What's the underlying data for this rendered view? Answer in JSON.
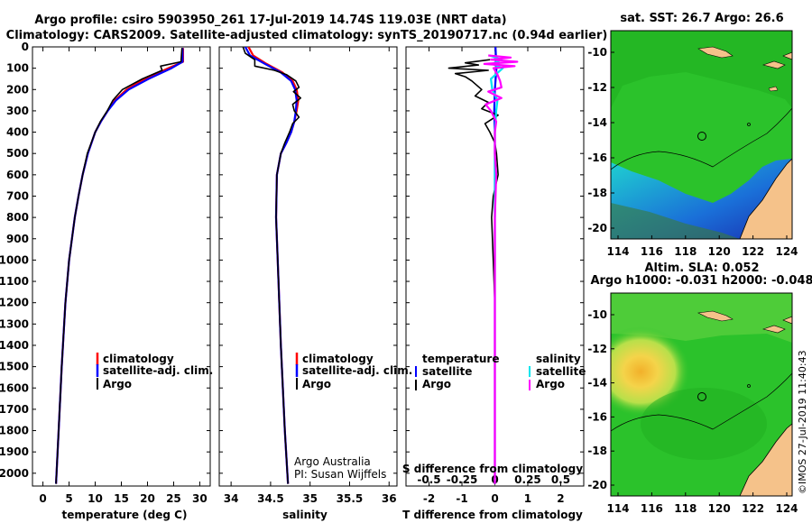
{
  "header": {
    "title_line1": "Argo profile: csiro 5903950_261 17-Jul-2019 14.74S 119.03E (NRT data)",
    "title_line2": "Climatology: CARS2009. Satellite-adjusted climatology: synTS_20190717.nc (0.94d earlier)"
  },
  "colors": {
    "argo": "#000000",
    "climatology": "#ff0000",
    "satellite": "#0000ff",
    "sat_salinity": "#00e5ee",
    "argo_salinity": "#ff00ff",
    "land": "#f5c28a",
    "sea_green": "#2bc22b"
  },
  "chart_data": [
    {
      "type": "line",
      "name": "temperature-profile",
      "xlabel": "temperature (deg C)",
      "ylabel": "",
      "xlim": [
        -2,
        32
      ],
      "ylim": [
        2060,
        0
      ],
      "xticks": [
        0,
        5,
        10,
        15,
        20,
        25,
        30
      ],
      "yticks": [
        0,
        100,
        200,
        300,
        400,
        500,
        600,
        700,
        800,
        900,
        1000,
        1100,
        1200,
        1300,
        1400,
        1500,
        1600,
        1700,
        1800,
        1900,
        2000
      ],
      "legend": [
        "climatology",
        "satellite-adj. clim.",
        "Argo"
      ],
      "series": [
        {
          "name": "climatology",
          "color": "#ff0000",
          "depth": [
            5,
            70,
            100,
            150,
            200,
            250,
            300,
            350,
            400,
            500,
            600,
            700,
            800,
            1000,
            1200,
            1500,
            1800,
            2050
          ],
          "values": [
            26.8,
            26.8,
            24.0,
            19.5,
            16.0,
            13.8,
            12.4,
            11.1,
            10.0,
            8.6,
            7.6,
            6.8,
            6.1,
            5.0,
            4.3,
            3.6,
            3.0,
            2.5
          ]
        },
        {
          "name": "satellite-adj. clim.",
          "color": "#0000ff",
          "depth": [
            5,
            70,
            100,
            150,
            200,
            250,
            300,
            350,
            400,
            500,
            600,
            700,
            800,
            1000,
            1200,
            1500,
            1800,
            2050
          ],
          "values": [
            26.7,
            26.7,
            24.6,
            20.2,
            16.4,
            14.0,
            12.4,
            11.1,
            10.0,
            8.6,
            7.6,
            6.8,
            6.1,
            5.0,
            4.3,
            3.6,
            3.0,
            2.5
          ]
        },
        {
          "name": "Argo",
          "color": "#000000",
          "depth": [
            5,
            70,
            90,
            110,
            150,
            200,
            250,
            300,
            350,
            400,
            500,
            600,
            700,
            800,
            1000,
            1200,
            1500,
            1800,
            2050
          ],
          "values": [
            26.6,
            26.4,
            22.5,
            22.8,
            19.0,
            15.2,
            13.4,
            12.3,
            11.0,
            10.0,
            8.5,
            7.6,
            6.8,
            6.1,
            5.0,
            4.3,
            3.6,
            3.0,
            2.5
          ]
        }
      ]
    },
    {
      "type": "line",
      "name": "salinity-profile",
      "xlabel": "salinity",
      "xlim": [
        33.85,
        36.1
      ],
      "ylim": [
        2060,
        0
      ],
      "xticks": [
        34,
        34.5,
        35,
        35.5,
        36
      ],
      "tick_labels": [
        "34",
        "34.5",
        "35",
        "35.5",
        "36"
      ],
      "legend": [
        "climatology",
        "satellite-adj. clim.",
        "Argo"
      ],
      "credit_line1": "Argo Australia",
      "credit_line2": "PI: Susan Wijffels",
      "series": [
        {
          "name": "climatology",
          "color": "#ff0000",
          "depth": [
            0,
            40,
            80,
            120,
            160,
            200,
            250,
            300,
            350,
            400,
            450,
            500,
            600,
            800,
            1000,
            1400,
            1800,
            2050
          ],
          "values": [
            34.22,
            34.28,
            34.45,
            34.65,
            34.78,
            34.83,
            34.85,
            34.83,
            34.8,
            34.76,
            34.7,
            34.63,
            34.58,
            34.57,
            34.59,
            34.63,
            34.68,
            34.72
          ]
        },
        {
          "name": "satellite-adj. clim.",
          "color": "#0000ff",
          "depth": [
            0,
            40,
            80,
            120,
            160,
            200,
            250,
            300,
            350,
            400,
            450,
            500,
            600,
            800,
            1000,
            1400,
            1800,
            2050
          ],
          "values": [
            34.18,
            34.24,
            34.43,
            34.63,
            34.76,
            34.81,
            34.83,
            34.82,
            34.8,
            34.76,
            34.7,
            34.63,
            34.58,
            34.57,
            34.59,
            34.63,
            34.68,
            34.72
          ]
        },
        {
          "name": "Argo",
          "color": "#000000",
          "depth": [
            0,
            30,
            60,
            90,
            110,
            130,
            160,
            190,
            210,
            240,
            270,
            300,
            330,
            360,
            400,
            450,
            500,
            600,
            800,
            1000,
            1400,
            1800,
            2050
          ],
          "values": [
            34.15,
            34.18,
            34.3,
            34.3,
            34.55,
            34.7,
            34.82,
            34.86,
            34.79,
            34.88,
            34.78,
            34.8,
            34.86,
            34.78,
            34.74,
            34.68,
            34.63,
            34.58,
            34.57,
            34.59,
            34.63,
            34.68,
            34.72
          ]
        }
      ]
    },
    {
      "type": "line",
      "name": "difference-from-climatology",
      "xlabel": "T difference from climatology",
      "xlabel_top": "S difference from climatology",
      "xlim": [
        -2.7,
        2.7
      ],
      "ylim": [
        2060,
        0
      ],
      "xticks": [
        -2,
        -1,
        0,
        1,
        2
      ],
      "s_ticks": [
        -0.5,
        -0.25,
        0,
        0.25,
        0.5
      ],
      "s_tick_labels": [
        "-0.5",
        "-0.25",
        "0",
        "0.25",
        "0.5"
      ],
      "legend_left_title": "temperature",
      "legend_right_title": "salinity",
      "legend_left": [
        "satellite",
        "Argo"
      ],
      "legend_right": [
        "satellite",
        "Argo"
      ],
      "series": [
        {
          "name": "T satellite",
          "color": "#0000ff",
          "depth": [
            0,
            100,
            200,
            300,
            400,
            600,
            800,
            1000,
            1500,
            2050
          ],
          "values": [
            0.02,
            0.05,
            0.0,
            -0.02,
            0.0,
            0.0,
            0.0,
            0.0,
            0.0,
            0.0
          ]
        },
        {
          "name": "T Argo",
          "color": "#000000",
          "depth": [
            60,
            75,
            85,
            100,
            110,
            125,
            140,
            160,
            200,
            230,
            260,
            290,
            320,
            360,
            400,
            450,
            500,
            600,
            700,
            800,
            1000,
            1200,
            1500,
            1800,
            2050
          ],
          "values": [
            -0.15,
            -0.9,
            -0.5,
            -1.4,
            -0.2,
            -1.2,
            -0.9,
            -0.7,
            -0.4,
            -0.6,
            -0.2,
            -0.4,
            0.1,
            -0.3,
            -0.15,
            0.0,
            0.05,
            0.1,
            -0.05,
            -0.1,
            -0.05,
            0.0,
            0.0,
            0.0,
            0.0
          ]
        },
        {
          "name": "S satellite",
          "color": "#00e5ee",
          "depth": [
            40,
            60,
            80,
            100,
            150,
            200,
            250,
            300,
            400,
            500,
            600,
            700,
            800
          ],
          "values": [
            -0.04,
            0.05,
            -0.02,
            0.06,
            -0.03,
            -0.02,
            0.02,
            0.01,
            0.0,
            0.0,
            0.0,
            0.0,
            0.0
          ]
        },
        {
          "name": "S Argo",
          "color": "#ff00ff",
          "depth": [
            40,
            50,
            60,
            70,
            80,
            90,
            100,
            130,
            160,
            190,
            210,
            240,
            270,
            300,
            350,
            400,
            500,
            600,
            800,
            1000,
            1400,
            1800,
            2050
          ],
          "values": [
            -0.05,
            0.12,
            -0.03,
            0.17,
            -0.08,
            0.15,
            -0.01,
            0.02,
            0.04,
            0.05,
            -0.05,
            0.05,
            -0.07,
            -0.03,
            0.01,
            0.0,
            0.0,
            0.01,
            0.0,
            0.0,
            0.0,
            0.0,
            0.0
          ]
        }
      ]
    }
  ],
  "maps": {
    "sst": {
      "title": "sat. SST: 26.7 Argo: 26.6",
      "lat_ticks": [
        "-10",
        "-12",
        "-14",
        "-16",
        "-18",
        "-20"
      ],
      "lon_ticks": [
        "114",
        "116",
        "118",
        "120",
        "122",
        "124"
      ]
    },
    "sla": {
      "title_line1": "Altim. SLA: 0.052",
      "title_line2": "Argo h1000: -0.031 h2000: -0.048",
      "lat_ticks": [
        "-10",
        "-12",
        "-14",
        "-16",
        "-18",
        "-20"
      ],
      "lon_ticks": [
        "114",
        "116",
        "118",
        "120",
        "122",
        "124"
      ]
    },
    "stamp": "©IMOS 27-Jul-2019 11:40:43"
  }
}
